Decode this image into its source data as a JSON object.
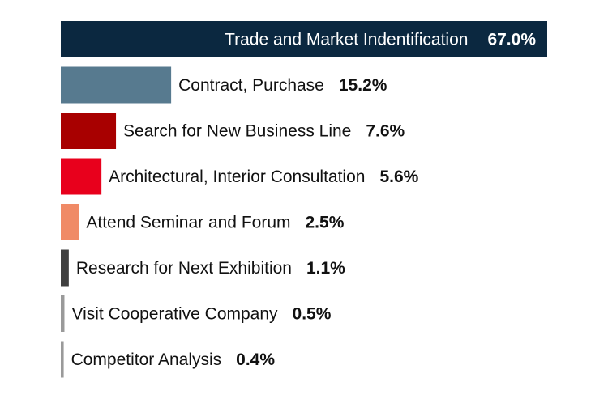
{
  "chart_data": {
    "type": "bar",
    "orientation": "horizontal",
    "title": "",
    "xlabel": "",
    "ylabel": "",
    "xlim": [
      0,
      67
    ],
    "grid": false,
    "legend": "none",
    "categories": [
      "Trade and Market Indentification",
      "Contract, Purchase",
      "Search for New Business Line",
      "Architectural, Interior Consultation",
      "Attend Seminar and Forum",
      "Research for Next Exhibition",
      "Visit Cooperative Company",
      "Competitor Analysis"
    ],
    "values": [
      67.0,
      15.2,
      7.6,
      5.6,
      2.5,
      1.1,
      0.5,
      0.4
    ],
    "value_labels": [
      "67.0%",
      "15.2%",
      "7.6%",
      "5.6%",
      "2.5%",
      "1.1%",
      "0.5%",
      "0.4%"
    ],
    "colors": [
      "#0b2840",
      "#577a8f",
      "#a80000",
      "#e8001c",
      "#f08a66",
      "#3f3f3f",
      "#9a9a9a",
      "#9a9a9a"
    ]
  }
}
